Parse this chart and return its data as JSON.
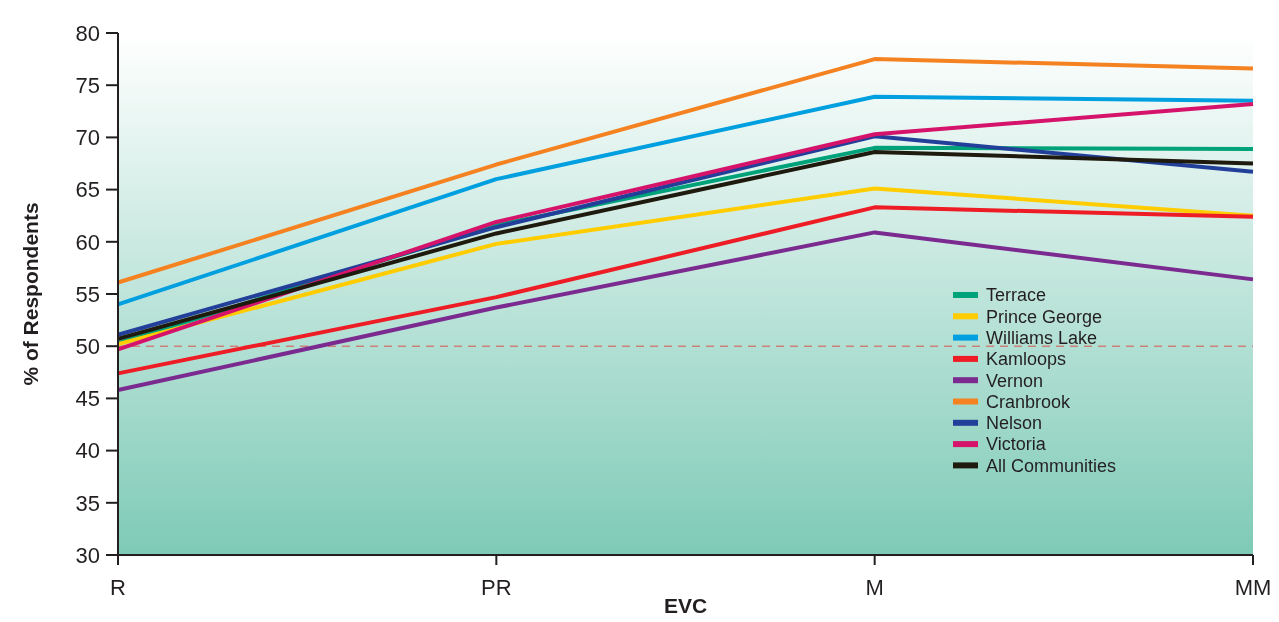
{
  "chart_data": {
    "type": "line",
    "xlabel": "EVC",
    "ylabel": "% of Respondents",
    "categories": [
      "R",
      "PR",
      "M",
      "MM"
    ],
    "ylim": [
      30,
      80
    ],
    "yticks": [
      30,
      35,
      40,
      45,
      50,
      55,
      60,
      65,
      70,
      75,
      80
    ],
    "grid": false,
    "legend": "bottom right",
    "marker": "none",
    "line_style": "solid",
    "ref_lines": [
      {
        "axis": "y",
        "value": 50,
        "color": "#d9534f",
        "line_style": "dashed"
      }
    ],
    "series": [
      {
        "name": "Terrace",
        "color": "#00a27a",
        "values": [
          50.3,
          61.6,
          69.0,
          68.9
        ]
      },
      {
        "name": "Prince George",
        "color": "#ffcc00",
        "values": [
          50.2,
          59.8,
          65.1,
          62.5
        ]
      },
      {
        "name": "Williams Lake",
        "color": "#00a0e0",
        "values": [
          54.0,
          66.0,
          73.9,
          73.5
        ]
      },
      {
        "name": "Kamloops",
        "color": "#ee1c25",
        "values": [
          47.4,
          54.7,
          63.3,
          62.4
        ]
      },
      {
        "name": "Vernon",
        "color": "#7b2a90",
        "values": [
          45.8,
          53.7,
          60.9,
          56.4
        ]
      },
      {
        "name": "Cranbrook",
        "color": "#f58220",
        "values": [
          56.1,
          67.4,
          77.5,
          76.6
        ]
      },
      {
        "name": "Nelson",
        "color": "#223f99",
        "values": [
          51.1,
          61.4,
          70.1,
          66.7
        ]
      },
      {
        "name": "Victoria",
        "color": "#d6136b",
        "values": [
          49.7,
          61.9,
          70.3,
          73.2
        ]
      },
      {
        "name": "All Communities",
        "color": "#1e1a0e",
        "values": [
          50.7,
          60.8,
          68.6,
          67.5
        ]
      }
    ]
  }
}
